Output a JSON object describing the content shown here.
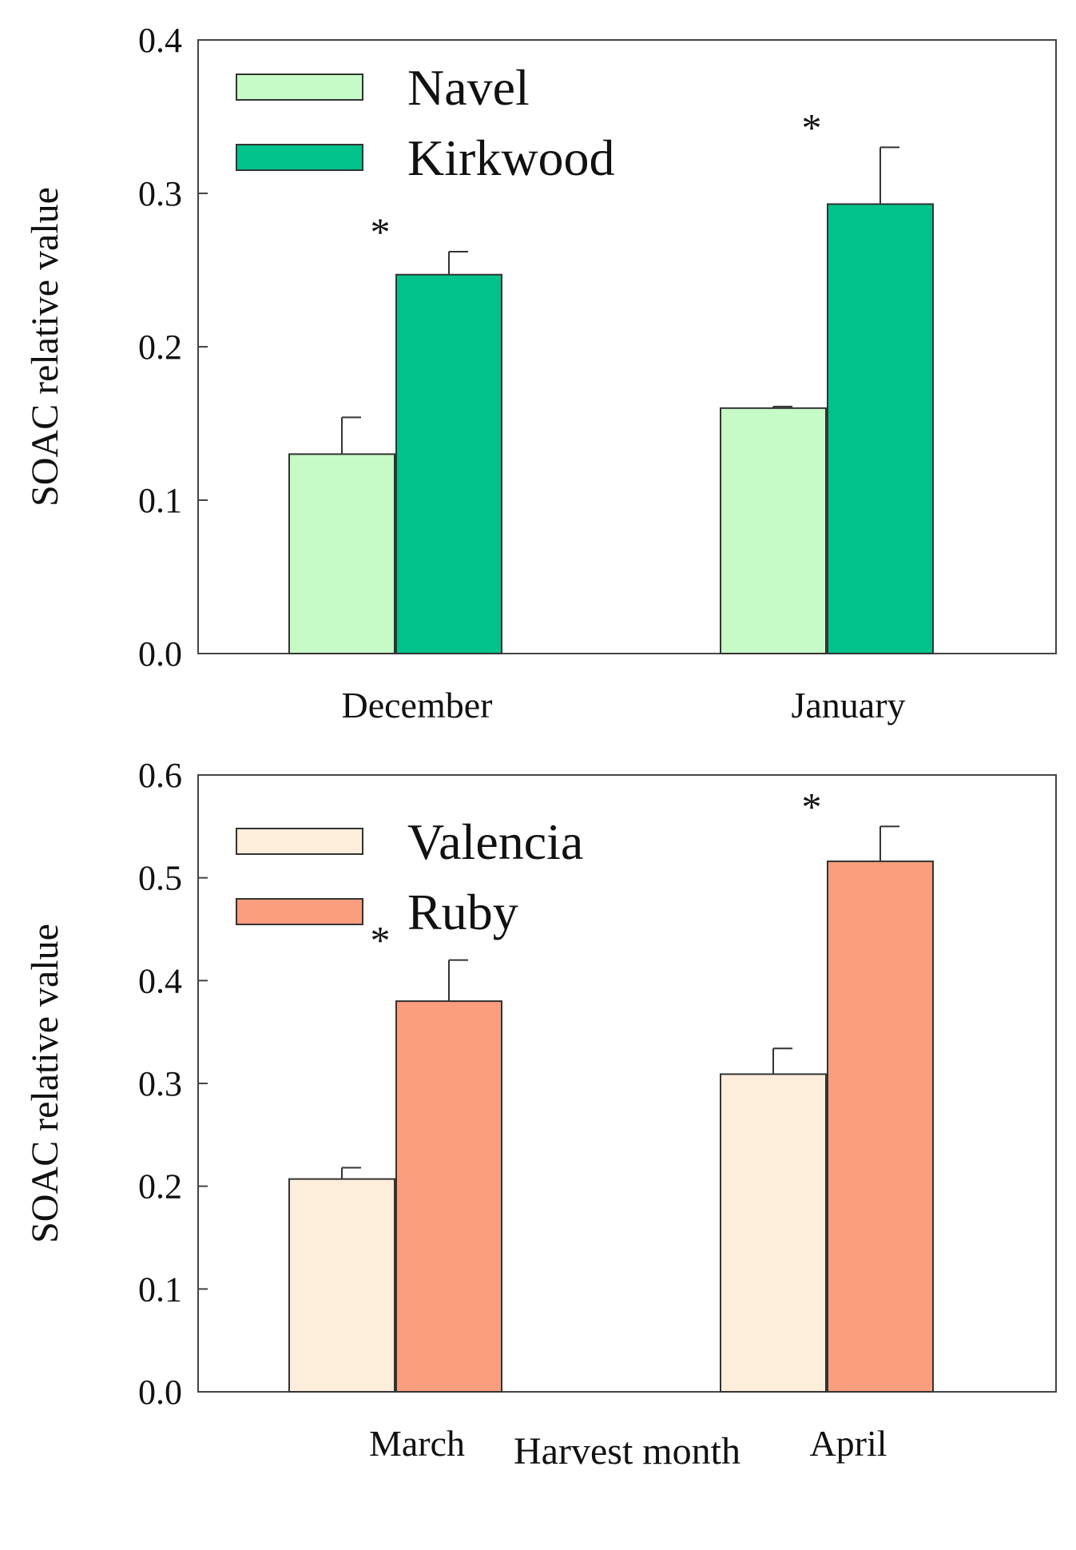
{
  "chart_data": [
    {
      "type": "bar",
      "title": "",
      "xlabel": "",
      "ylabel": "SOAC relative value",
      "ylim": [
        0,
        0.4
      ],
      "yticks": [
        0.0,
        0.1,
        0.2,
        0.3,
        0.4
      ],
      "ytick_labels": [
        "0.0",
        "0.1",
        "0.2",
        "0.3",
        "0.4"
      ],
      "categories": [
        "December",
        "January"
      ],
      "legend_position": "top-left",
      "series": [
        {
          "name": "Navel",
          "color": "#c6fac6",
          "values": [
            0.13,
            0.16
          ],
          "errors": [
            0.024,
            0.001
          ]
        },
        {
          "name": "Kirkwood",
          "color": "#00c28a",
          "values": [
            0.247,
            0.293
          ],
          "errors": [
            0.015,
            0.037
          ]
        }
      ],
      "annotations": [
        {
          "text": "*",
          "category": 0,
          "series": 1
        },
        {
          "text": "*",
          "category": 1,
          "series": 1
        }
      ]
    },
    {
      "type": "bar",
      "title": "",
      "xlabel": "Harvest month",
      "ylabel": "SOAC relative value",
      "ylim": [
        0,
        0.6
      ],
      "yticks": [
        0.0,
        0.1,
        0.2,
        0.3,
        0.4,
        0.5,
        0.6
      ],
      "ytick_labels": [
        "0.0",
        "0.1",
        "0.2",
        "0.3",
        "0.4",
        "0.5",
        "0.6"
      ],
      "categories": [
        "March",
        "April"
      ],
      "legend_position": "top-left",
      "series": [
        {
          "name": "Valencia",
          "color": "#fdeedc",
          "values": [
            0.207,
            0.309
          ],
          "errors": [
            0.011,
            0.025
          ]
        },
        {
          "name": "Ruby",
          "color": "#fa9e7e",
          "values": [
            0.38,
            0.516
          ],
          "errors": [
            0.04,
            0.034
          ]
        }
      ],
      "annotations": [
        {
          "text": "*",
          "category": 0,
          "series": 1
        },
        {
          "text": "*",
          "category": 1,
          "series": 1
        }
      ]
    }
  ]
}
